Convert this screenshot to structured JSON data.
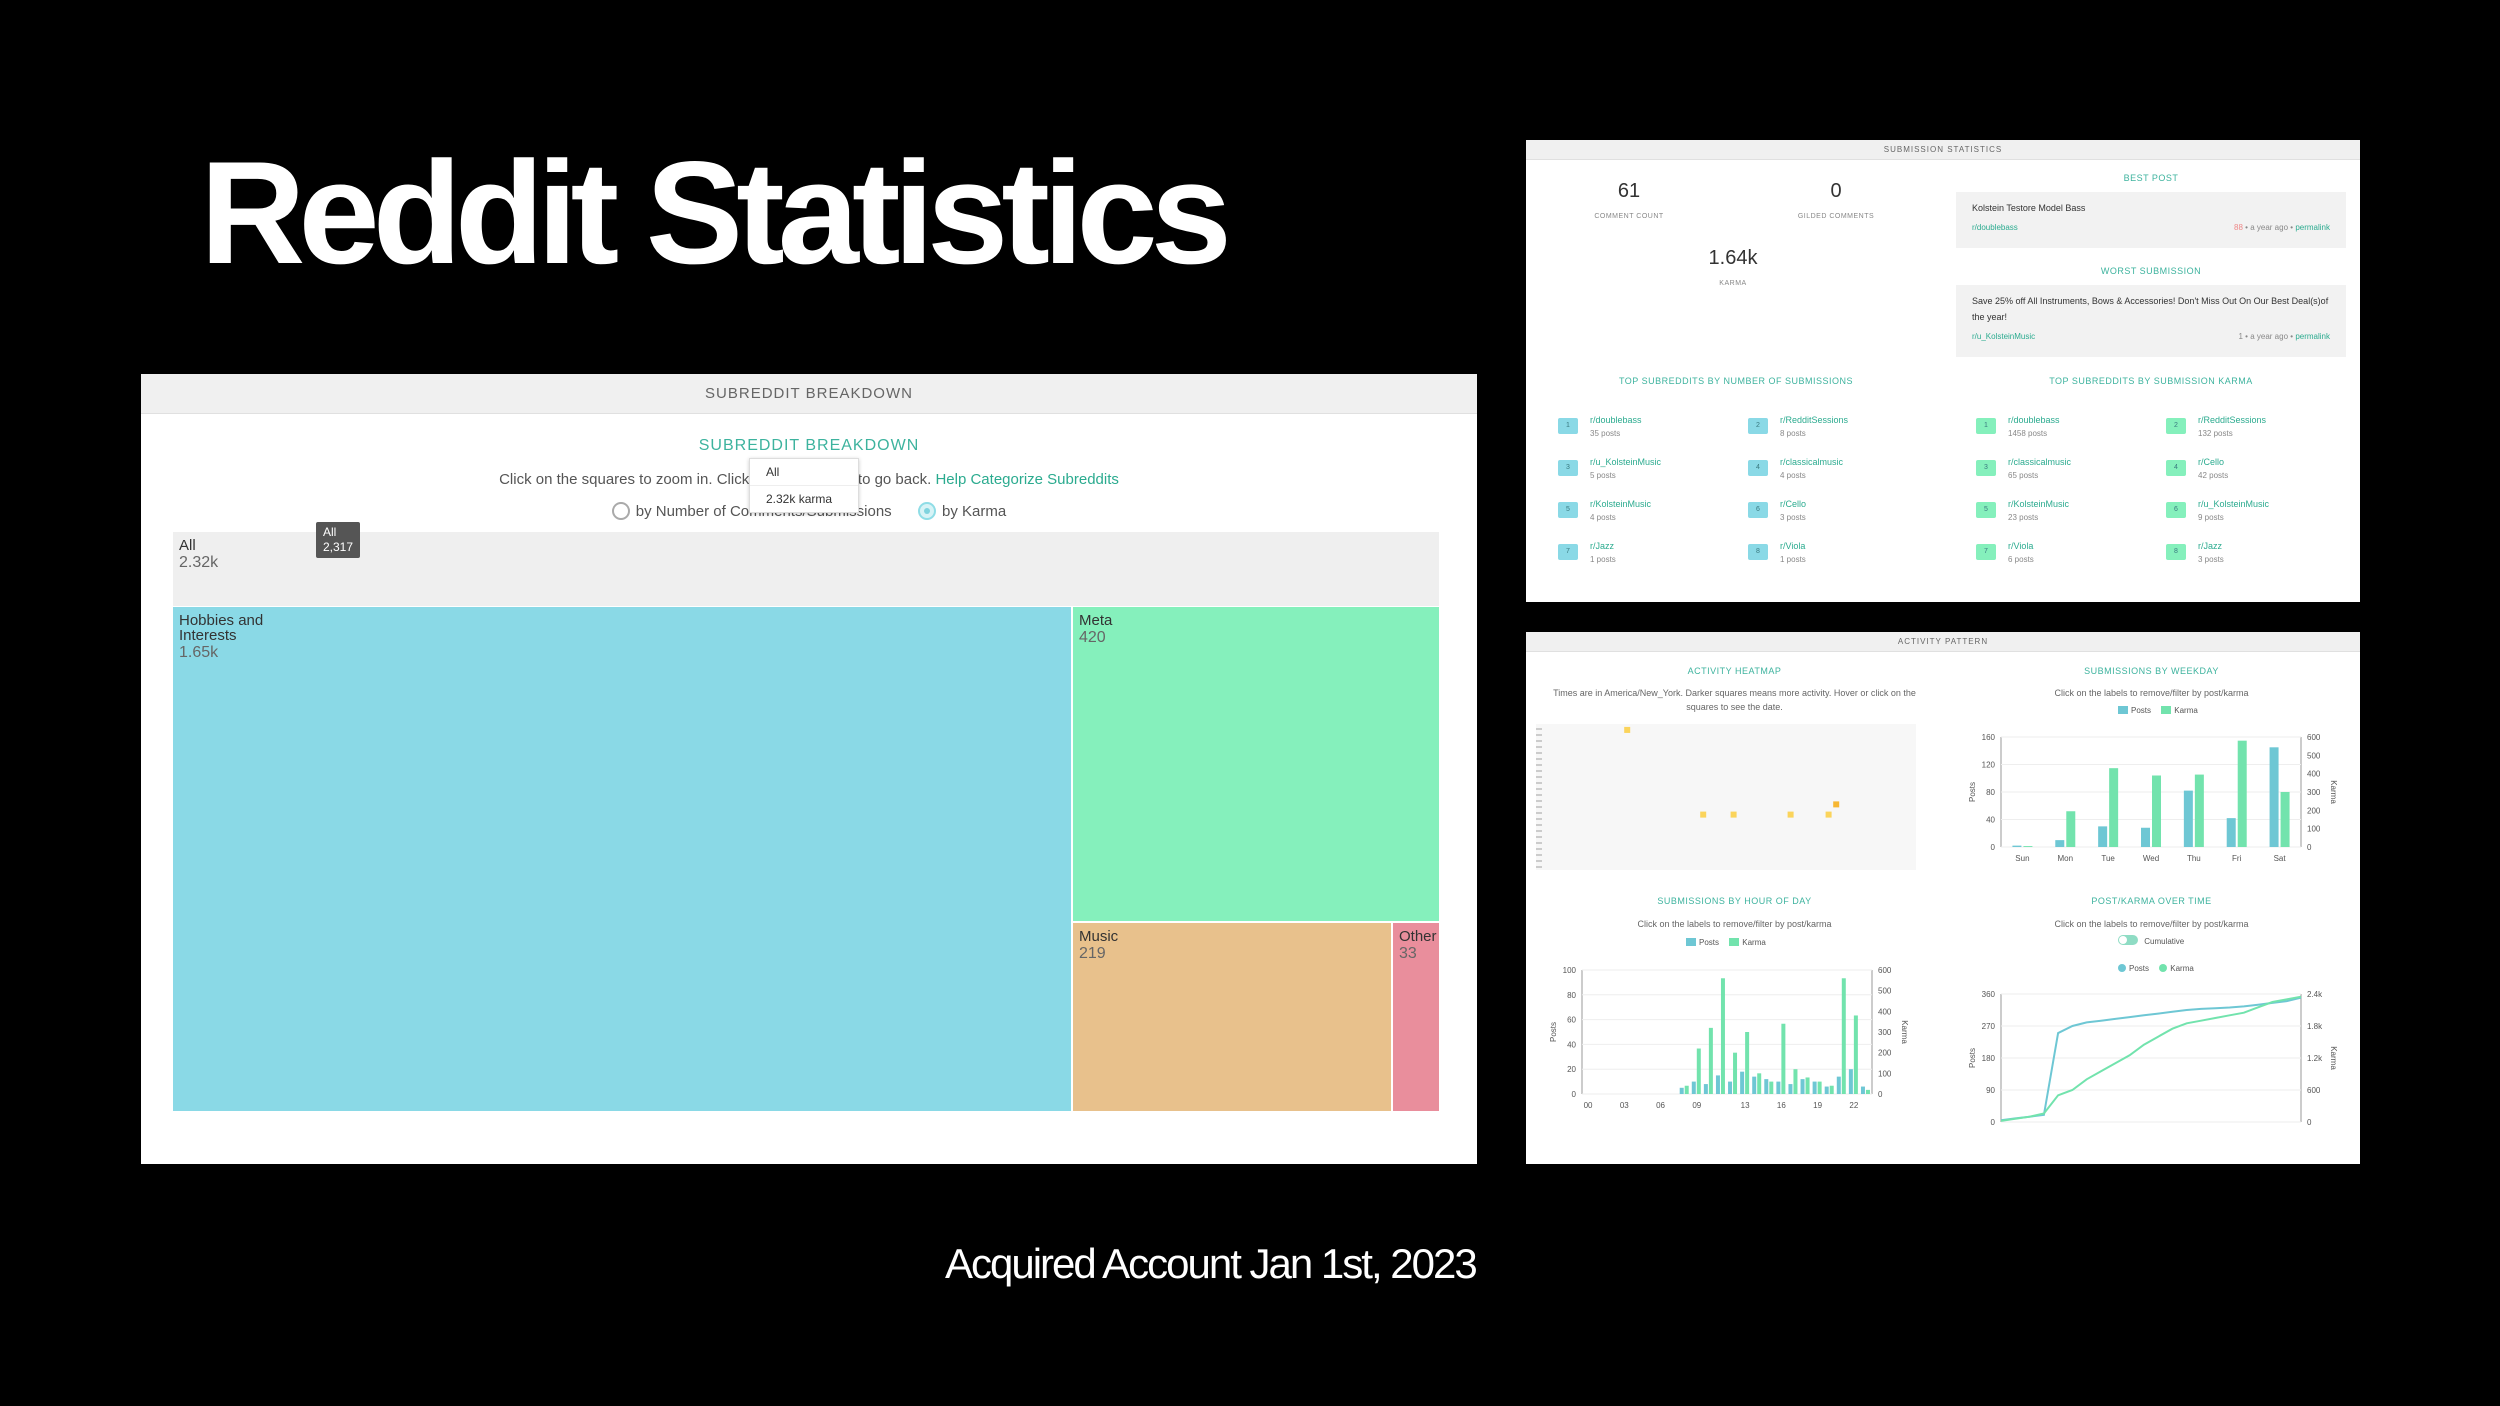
{
  "slide": {
    "title": "Reddit Statistics",
    "caption": "Acquired Account Jan 1st, 2023"
  },
  "colors": {
    "teal": "#3db39e",
    "blue": "#8ad9e6",
    "green": "#85f0bc",
    "orange": "#e8c18c",
    "pink": "#e98e9c"
  },
  "treemap": {
    "header": "SUBREDDIT BREAKDOWN",
    "heading": "SUBREDDIT BREAKDOWN",
    "instr_before": "Click on the squares to zoom in. Click on t",
    "instr_after": "p) to go back.",
    "link": "Help Categorize Subreddits",
    "radio_comments": "by Number of Comments/Submissions",
    "radio_karma": "by Karma",
    "dropdown": [
      "All",
      "2.32k karma"
    ],
    "tooltip_title": "All",
    "tooltip_value": "2,317",
    "cells": [
      {
        "label": "All",
        "value": "2.32k"
      },
      {
        "label": "Hobbies and Interests",
        "value": "1.65k"
      },
      {
        "label": "Meta",
        "value": "420"
      },
      {
        "label": "Music",
        "value": "219"
      },
      {
        "label": "Other",
        "value": "33"
      }
    ]
  },
  "submission_stats": {
    "header": "SUBMISSION STATISTICS",
    "comment_count": "61",
    "comment_count_label": "COMMENT COUNT",
    "gilded": "0",
    "gilded_label": "GILDED COMMENTS",
    "karma": "1.64k",
    "karma_label": "KARMA",
    "best_post_heading": "BEST POST",
    "best_post": {
      "title": "Kolstein Testore Model Bass",
      "subreddit": "r/doublebass",
      "score": "88",
      "time": "a year ago",
      "sep": "•",
      "permalink": "permalink"
    },
    "worst_heading": "WORST SUBMISSION",
    "worst_post": {
      "title": "Save 25% off All Instruments, Bows & Accessories! Don't Miss Out On Our Best Deal(s)of the year!",
      "subreddit": "r/u_KolsteinMusic",
      "score": "1",
      "time": "a year ago",
      "sep": "•",
      "permalink": "permalink"
    },
    "top_by_submissions_heading": "TOP SUBREDDITS BY NUMBER OF SUBMISSIONS",
    "top_by_submissions": [
      {
        "rank": "1",
        "name": "r/doublebass",
        "count": "35 posts"
      },
      {
        "rank": "2",
        "name": "r/RedditSessions",
        "count": "8 posts"
      },
      {
        "rank": "3",
        "name": "r/u_KolsteinMusic",
        "count": "5 posts"
      },
      {
        "rank": "4",
        "name": "r/classicalmusic",
        "count": "4 posts"
      },
      {
        "rank": "5",
        "name": "r/KolsteinMusic",
        "count": "4 posts"
      },
      {
        "rank": "6",
        "name": "r/Cello",
        "count": "3 posts"
      },
      {
        "rank": "7",
        "name": "r/Jazz",
        "count": "1 posts"
      },
      {
        "rank": "8",
        "name": "r/Viola",
        "count": "1 posts"
      }
    ],
    "top_by_karma_heading": "TOP SUBREDDITS BY SUBMISSION KARMA",
    "top_by_karma": [
      {
        "rank": "1",
        "name": "r/doublebass",
        "count": "1458 posts"
      },
      {
        "rank": "2",
        "name": "r/RedditSessions",
        "count": "132 posts"
      },
      {
        "rank": "3",
        "name": "r/classicalmusic",
        "count": "65 posts"
      },
      {
        "rank": "4",
        "name": "r/Cello",
        "count": "42 posts"
      },
      {
        "rank": "5",
        "name": "r/KolsteinMusic",
        "count": "23 posts"
      },
      {
        "rank": "6",
        "name": "r/u_KolsteinMusic",
        "count": "9 posts"
      },
      {
        "rank": "7",
        "name": "r/Viola",
        "count": "6 posts"
      },
      {
        "rank": "8",
        "name": "r/Jazz",
        "count": "3 posts"
      }
    ]
  },
  "activity": {
    "header": "ACTIVITY PATTERN",
    "heatmap_heading": "ACTIVITY HEATMAP",
    "heatmap_note": "Times are in America/New_York. Darker squares means more activity. Hover or click on the squares to see the date.",
    "weekday_heading": "SUBMISSIONS BY WEEKDAY",
    "weekday_note": "Click on the labels to remove/filter by post/karma",
    "hour_heading": "SUBMISSIONS BY HOUR OF DAY",
    "hour_note": "Click on the labels to remove/filter by post/karma",
    "time_heading": "POST/KARMA OVER TIME",
    "time_note": "Click on the labels to remove/filter by post/karma",
    "cumulative_label": "Cumulative",
    "legend_posts": "Posts",
    "legend_karma": "Karma",
    "axis_posts": "Posts",
    "axis_karma": "Karma"
  },
  "chart_data": [
    {
      "type": "bar",
      "title": "SUBMISSIONS BY WEEKDAY",
      "categories": [
        "Sun",
        "Mon",
        "Tue",
        "Wed",
        "Thu",
        "Fri",
        "Sat"
      ],
      "ylabel": "Posts",
      "y2label": "Karma",
      "ylim": [
        0,
        160
      ],
      "y2lim": [
        0,
        600
      ],
      "yticks": [
        0,
        40,
        80,
        120,
        160
      ],
      "y2ticks": [
        0,
        100,
        200,
        300,
        400,
        500,
        600
      ],
      "series": [
        {
          "name": "Posts",
          "axis": "left",
          "values": [
            2,
            10,
            30,
            28,
            82,
            42,
            145
          ]
        },
        {
          "name": "Karma",
          "axis": "right",
          "values": [
            5,
            195,
            430,
            390,
            395,
            580,
            300
          ]
        }
      ]
    },
    {
      "type": "bar",
      "title": "SUBMISSIONS BY HOUR OF DAY",
      "categories": [
        "00",
        "01",
        "02",
        "03",
        "04",
        "05",
        "06",
        "07",
        "08",
        "09",
        "10",
        "11",
        "12",
        "13",
        "14",
        "15",
        "16",
        "17",
        "18",
        "19",
        "20",
        "21",
        "22",
        "23"
      ],
      "xticks": [
        "00",
        "03",
        "06",
        "09",
        "13",
        "16",
        "19",
        "22"
      ],
      "ylabel": "Posts",
      "y2label": "Karma",
      "ylim": [
        0,
        100
      ],
      "y2lim": [
        0,
        600
      ],
      "yticks": [
        0,
        20,
        40,
        60,
        80,
        100
      ],
      "y2ticks": [
        0,
        100,
        200,
        300,
        400,
        500,
        600
      ],
      "series": [
        {
          "name": "Posts",
          "axis": "left",
          "values": [
            0,
            0,
            0,
            0,
            0,
            0,
            0,
            0,
            5,
            10,
            8,
            15,
            10,
            18,
            14,
            12,
            10,
            8,
            12,
            10,
            6,
            14,
            20,
            6
          ]
        },
        {
          "name": "Karma",
          "axis": "right",
          "values": [
            0,
            0,
            0,
            0,
            0,
            0,
            0,
            0,
            40,
            220,
            320,
            560,
            200,
            300,
            100,
            60,
            340,
            120,
            80,
            60,
            40,
            560,
            380,
            20
          ]
        }
      ]
    },
    {
      "type": "line",
      "title": "POST/KARMA OVER TIME",
      "ylabel": "Posts",
      "y2label": "Karma",
      "ylim": [
        0,
        360
      ],
      "y2lim": [
        0,
        2400
      ],
      "yticks": [
        0,
        90,
        180,
        270,
        360
      ],
      "y2ticks": [
        "0",
        "600",
        "1.2k",
        "1.8k",
        "2.4k"
      ],
      "series": [
        {
          "name": "Posts",
          "axis": "left",
          "values": [
            5,
            10,
            15,
            20,
            250,
            270,
            280,
            285,
            290,
            295,
            300,
            305,
            310,
            315,
            318,
            320,
            322,
            325,
            330,
            335,
            340,
            350
          ]
        },
        {
          "name": "Karma",
          "axis": "right",
          "values": [
            20,
            60,
            100,
            160,
            500,
            600,
            800,
            950,
            1100,
            1250,
            1450,
            1600,
            1750,
            1850,
            1900,
            1950,
            2000,
            2050,
            2150,
            2250,
            2300,
            2350
          ]
        }
      ]
    },
    {
      "type": "scatter",
      "title": "ACTIVITY HEATMAP",
      "series": [
        {
          "name": "",
          "values": [
            [
              0.24,
              0.02
            ],
            [
              0.44,
              0.6
            ],
            [
              0.52,
              0.6
            ],
            [
              0.67,
              0.6
            ],
            [
              0.77,
              0.6
            ],
            [
              0.79,
              0.53
            ]
          ]
        }
      ]
    }
  ]
}
